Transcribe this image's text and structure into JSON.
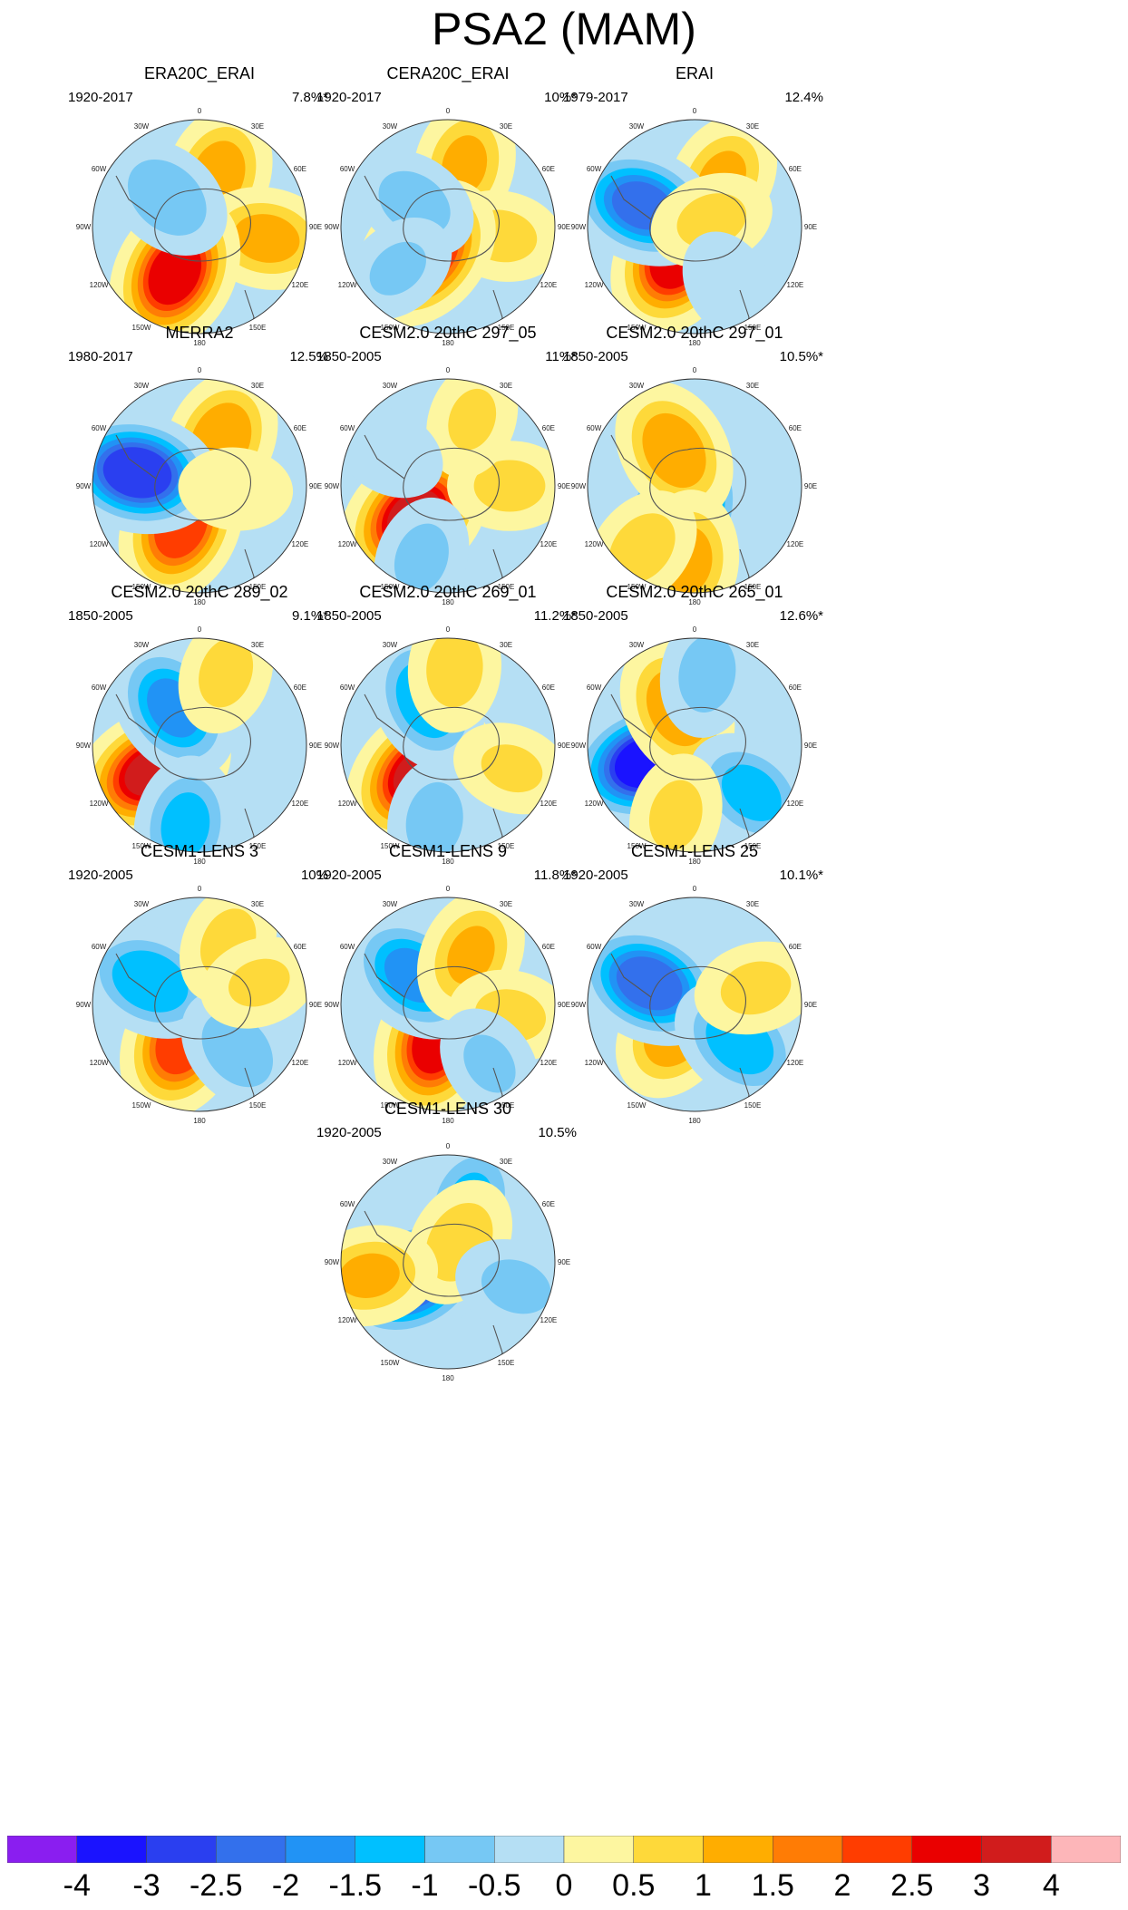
{
  "title": "PSA2 (MAM)",
  "chart_data": {
    "type": "polar-stereographic-contour-maps",
    "panels": [
      {
        "title": "ERA20C_ERAI",
        "period": "1920-2017",
        "variance": "7.8%*",
        "blobs": [
          [
            60,
            20,
            1.5
          ],
          [
            75,
            100,
            1.4
          ],
          [
            58,
            208,
            3.1
          ],
          [
            48,
            312,
            -1.2
          ]
        ]
      },
      {
        "title": "CERA20C_ERAI",
        "period": "1920-2017",
        "variance": "10%*",
        "blobs": [
          [
            70,
            15,
            1.3
          ],
          [
            60,
            100,
            0.9
          ],
          [
            38,
            220,
            3.0
          ],
          [
            45,
            305,
            -1.0
          ],
          [
            72,
            230,
            -0.8
          ]
        ]
      },
      {
        "title": "ERAI",
        "period": "1979-2017",
        "variance": "12.4%",
        "blobs": [
          [
            60,
            30,
            1.3
          ],
          [
            38,
            210,
            3.2
          ],
          [
            62,
            292,
            -2.4
          ],
          [
            20,
            70,
            0.9
          ],
          [
            75,
            150,
            -0.7
          ]
        ]
      },
      {
        "title": "MERRA2",
        "period": "1980-2017",
        "variance": "12.5%",
        "blobs": [
          [
            55,
            25,
            1.7
          ],
          [
            48,
            205,
            2.6
          ],
          [
            70,
            282,
            -3.2
          ],
          [
            40,
            95,
            0.7
          ]
        ]
      },
      {
        "title": "CESM2.0 20thC 297_05",
        "period": "1850-2005",
        "variance": "11%*",
        "blobs": [
          [
            50,
            228,
            3.4
          ],
          [
            68,
            90,
            0.9
          ],
          [
            78,
            20,
            0.8
          ],
          [
            75,
            300,
            -0.7
          ],
          [
            85,
            200,
            -0.9
          ]
        ]
      },
      {
        "title": "CESM2.0 20thC 297_01",
        "period": "1850-2005",
        "variance": "10.5%*",
        "blobs": [
          [
            35,
            205,
            -3.3
          ],
          [
            45,
            330,
            1.7
          ],
          [
            82,
            185,
            1.4
          ],
          [
            90,
            220,
            1.0
          ]
        ]
      },
      {
        "title": "CESM2.0 20thC 289_02",
        "period": "1850-2005",
        "variance": "9.1%*",
        "blobs": [
          [
            60,
            240,
            3.3
          ],
          [
            50,
            325,
            -1.9
          ],
          [
            90,
            190,
            -1.4
          ],
          [
            85,
            20,
            0.9
          ]
        ]
      },
      {
        "title": "CESM2.0 20thC 269_01",
        "period": "1850-2005",
        "variance": "11.2%*",
        "blobs": [
          [
            45,
            225,
            3.3
          ],
          [
            55,
            335,
            -1.7
          ],
          [
            85,
            190,
            -1.0
          ],
          [
            85,
            5,
            1.0
          ],
          [
            75,
            110,
            0.8
          ]
        ]
      },
      {
        "title": "CESM2.0 20thC 265_01",
        "period": "1850-2005",
        "variance": "12.6%*",
        "blobs": [
          [
            55,
            250,
            -3.7
          ],
          [
            45,
            335,
            1.7
          ],
          [
            82,
            130,
            -1.4
          ],
          [
            80,
            10,
            -1.0
          ],
          [
            80,
            195,
            0.9
          ]
        ]
      },
      {
        "title": "CESM1-LENS 3",
        "period": "1920-2005",
        "variance": "10%",
        "blobs": [
          [
            45,
            205,
            2.6
          ],
          [
            60,
            295,
            -1.7
          ],
          [
            65,
            140,
            -1.1
          ],
          [
            75,
            25,
            0.9
          ],
          [
            70,
            70,
            0.8
          ]
        ]
      },
      {
        "title": "CESM1-LENS 9",
        "period": "1920-2005",
        "variance": "11.8%*",
        "blobs": [
          [
            45,
            198,
            2.9
          ],
          [
            50,
            310,
            -1.9
          ],
          [
            60,
            25,
            1.3
          ],
          [
            70,
            100,
            0.9
          ],
          [
            80,
            145,
            -0.8
          ]
        ]
      },
      {
        "title": "CESM1-LENS 25",
        "period": "1920-2005",
        "variance": "10.1%*",
        "blobs": [
          [
            35,
            215,
            1.7
          ],
          [
            55,
            295,
            -2.6
          ],
          [
            65,
            130,
            -1.6
          ],
          [
            70,
            75,
            0.9
          ]
        ]
      },
      {
        "title": "CESM1-LENS 30",
        "period": "1920-2005",
        "variance": "10.5%",
        "blobs": [
          [
            45,
            245,
            -3.1
          ],
          [
            70,
            20,
            -1.3
          ],
          [
            25,
            30,
            1.1
          ],
          [
            88,
            260,
            1.3
          ],
          [
            80,
            110,
            -0.9
          ]
        ]
      }
    ],
    "grid_labels": [
      "0",
      "30E",
      "60E",
      "90E",
      "120E",
      "150E",
      "180",
      "150W",
      "120W",
      "90W",
      "60W",
      "30W"
    ],
    "colorbar": {
      "colors": [
        "#8a1ef0",
        "#1a13ff",
        "#2a3ff0",
        "#3370ec",
        "#2193f5",
        "#00c0ff",
        "#76c8f4",
        "#b5dff4",
        "#fdf6a0",
        "#fed93a",
        "#ffad00",
        "#ff7c05",
        "#ff3d00",
        "#ea0000",
        "#d11c1c",
        "#fdb6b9"
      ],
      "labels": [
        "-4",
        "-3",
        "-2.5",
        "-2",
        "-1.5",
        "-1",
        "-0.5",
        "0",
        "0.5",
        "1",
        "1.5",
        "2",
        "2.5",
        "3",
        "4"
      ]
    }
  }
}
